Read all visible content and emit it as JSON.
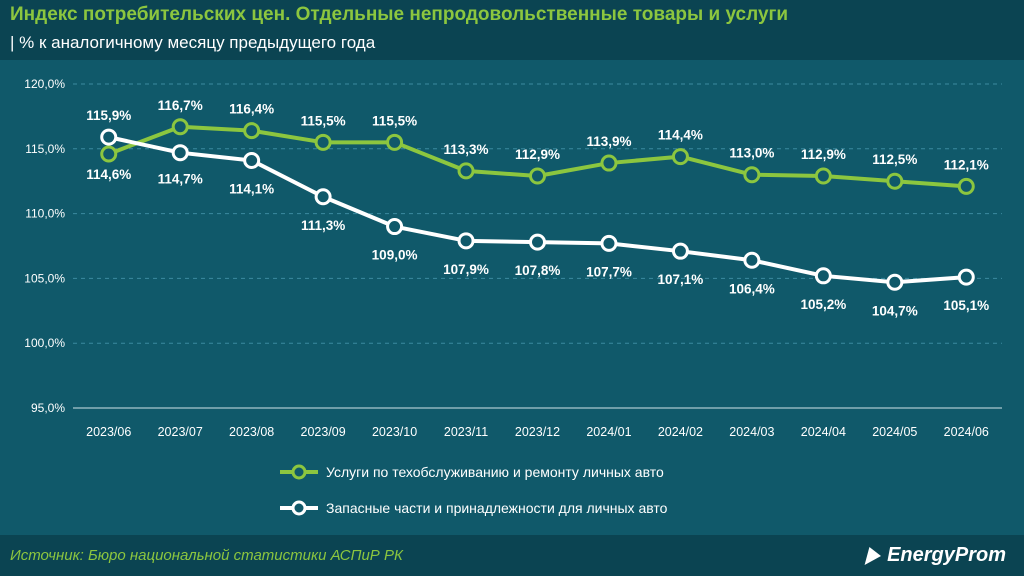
{
  "header": {
    "title": "Индекс потребительских цен. Отдельные непродовольственные товары и услуги",
    "subtitle": "| % к аналогичному месяцу предыдущего года"
  },
  "footer": {
    "source": "Источник: Бюро национальной статистики АСПиР РК",
    "brand": "EnergyProm"
  },
  "colors": {
    "background": "#10596a",
    "services_line": "#8cc63f",
    "parts_line": "#ffffff",
    "title": "#8cc63f"
  },
  "chart_data": {
    "type": "line",
    "categories": [
      "2023/06",
      "2023/07",
      "2023/08",
      "2023/09",
      "2023/10",
      "2023/11",
      "2023/12",
      "2024/01",
      "2024/02",
      "2024/03",
      "2024/04",
      "2024/05",
      "2024/06"
    ],
    "y_ticks": [
      "120,0%",
      "115,0%",
      "110,0%",
      "105,0%",
      "100,0%",
      "95,0%"
    ],
    "ylim": [
      95,
      120
    ],
    "grid": "horizontal dashed",
    "legend_position": "bottom",
    "series": [
      {
        "name": "Услуги по техобслуживанию и ремонту личных авто",
        "color": "#8cc63f",
        "values": [
          114.6,
          116.7,
          116.4,
          115.5,
          115.5,
          113.3,
          112.9,
          113.9,
          114.4,
          113.0,
          112.9,
          112.5,
          112.1
        ],
        "labels": [
          "114,6%",
          "116,7%",
          "116,4%",
          "115,5%",
          "115,5%",
          "113,3%",
          "112,9%",
          "113,9%",
          "114,4%",
          "113,0%",
          "112,9%",
          "112,5%",
          "112,1%"
        ]
      },
      {
        "name": "Запасные части и принадлежности для личных авто",
        "color": "#ffffff",
        "values": [
          115.9,
          114.7,
          114.1,
          111.3,
          109.0,
          107.9,
          107.8,
          107.7,
          107.1,
          106.4,
          105.2,
          104.7,
          105.1
        ],
        "labels": [
          "115,9%",
          "114,7%",
          "114,1%",
          "111,3%",
          "109,0%",
          "107,9%",
          "107,8%",
          "107,7%",
          "107,1%",
          "106,4%",
          "105,2%",
          "104,7%",
          "105,1%"
        ]
      }
    ]
  }
}
